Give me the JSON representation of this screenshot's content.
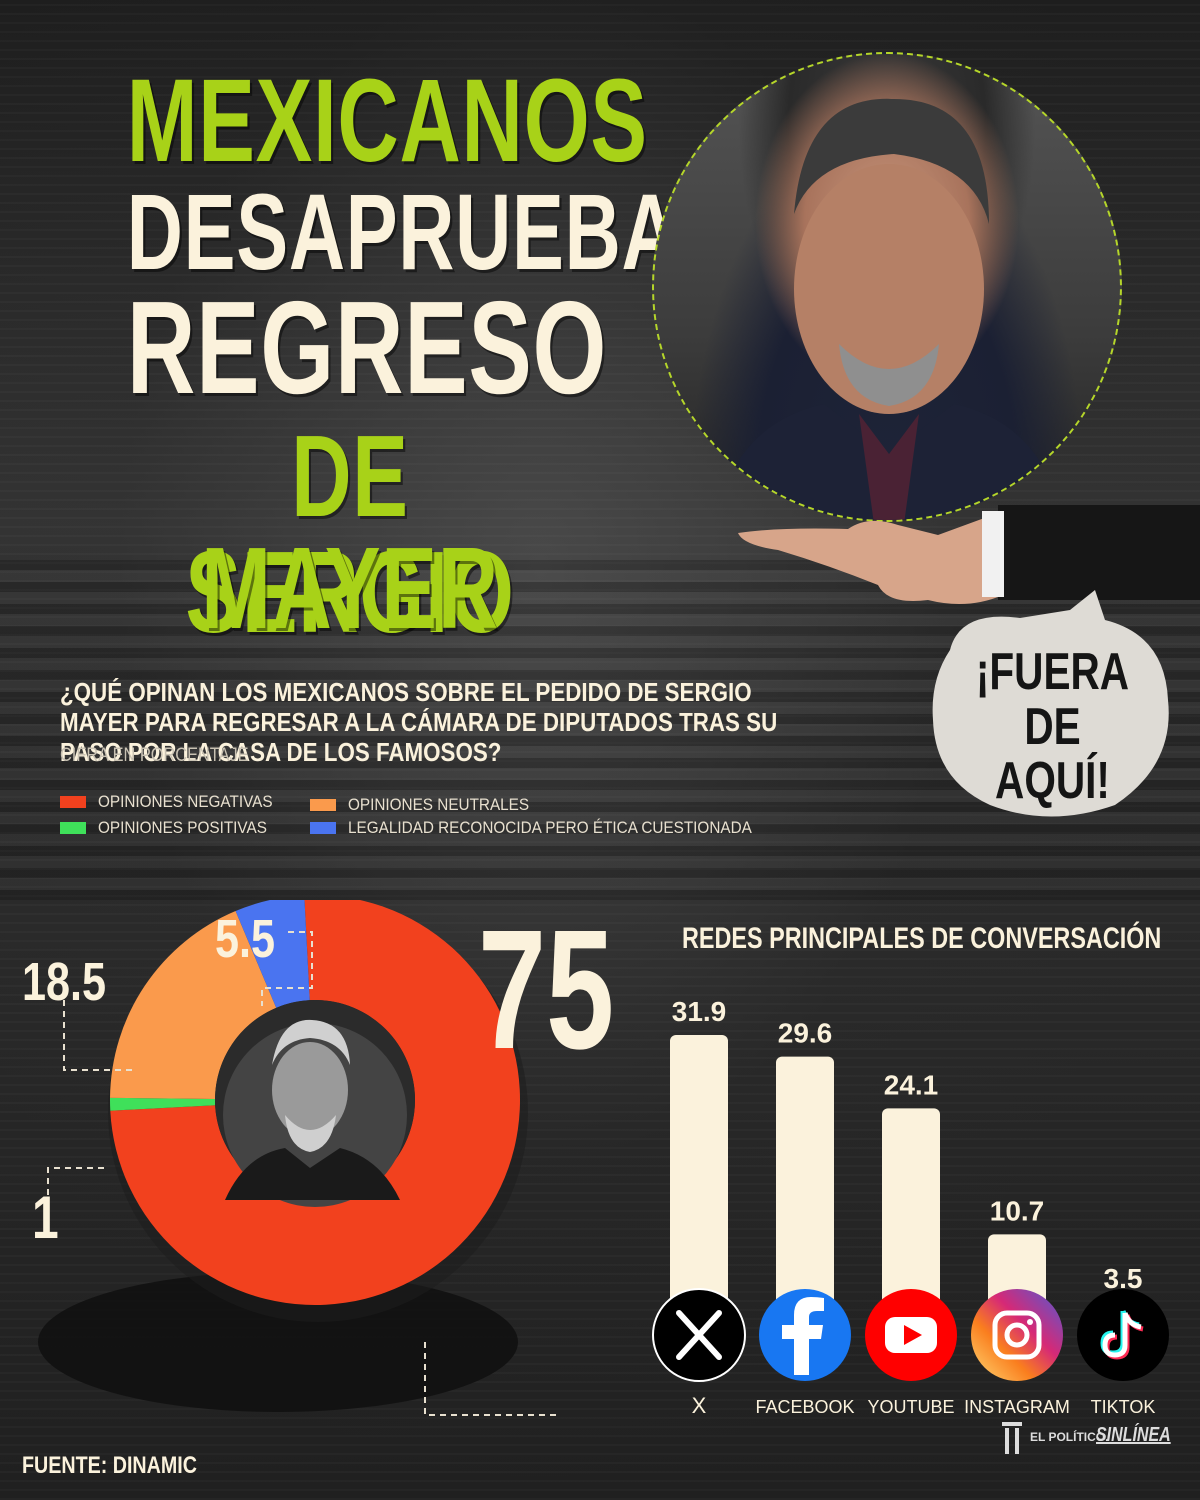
{
  "title": {
    "line1": "MEXICANOS",
    "line2": "DESAPRUEBAN",
    "line3": "REGRESO",
    "line4": "DE SERGIO",
    "line5": "MAYER"
  },
  "speech_bubble": {
    "line1": "¡FUERA",
    "line2": "DE AQUÍ!"
  },
  "question": "¿QUÉ OPINAN LOS MEXICANOS SOBRE EL PEDIDO DE SERGIO MAYER PARA REGRESAR A LA CÁMARA DE DIPUTADOS TRAS SU PASO POR LA CASA DE LOS FAMOSOS?",
  "unit_note": "CIFRA EN PORCENTAJE",
  "colors": {
    "negative": "#f2411e",
    "neutral": "#fa9a4c",
    "positive": "#3fe05a",
    "legal": "#4a74f0",
    "accent_green": "#a8d218",
    "bar_fill": "#fbf2dc"
  },
  "source": "FUENTE: DINAMIC",
  "logos": {
    "el_politico": "EL POLÍTICO.",
    "sinlinea": "SINLÍNEA"
  },
  "chart_data": [
    {
      "type": "pie",
      "style": "donut",
      "series": [
        {
          "name": "OPINIONES NEGATIVAS",
          "value": 75,
          "label": "75",
          "color": "#f2411e"
        },
        {
          "name": "OPINIONES POSITIVAS",
          "value": 1,
          "label": "1",
          "color": "#3fe05a"
        },
        {
          "name": "OPINIONES NEUTRALES",
          "value": 18.5,
          "label": "18.5",
          "color": "#fa9a4c"
        },
        {
          "name": "LEGALIDAD RECONOCIDA PERO ÉTICA CUESTIONADA",
          "value": 5.5,
          "label": "5.5",
          "color": "#4a74f0"
        }
      ],
      "legend_placement": "top-left"
    },
    {
      "type": "bar",
      "title": "REDES PRINCIPALES DE CONVERSACIÓN",
      "categories": [
        "X",
        "FACEBOOK",
        "YOUTUBE",
        "INSTAGRAM",
        "TIKTOK"
      ],
      "values": [
        31.9,
        29.6,
        24.1,
        10.7,
        3.5
      ],
      "value_labels": [
        "31.9",
        "29.6",
        "24.1",
        "10.7",
        "3.5"
      ],
      "icons": [
        "x-logo-icon",
        "facebook-icon",
        "youtube-icon",
        "instagram-icon",
        "tiktok-icon"
      ],
      "ylim": [
        0,
        31.9
      ],
      "grid": false
    }
  ]
}
